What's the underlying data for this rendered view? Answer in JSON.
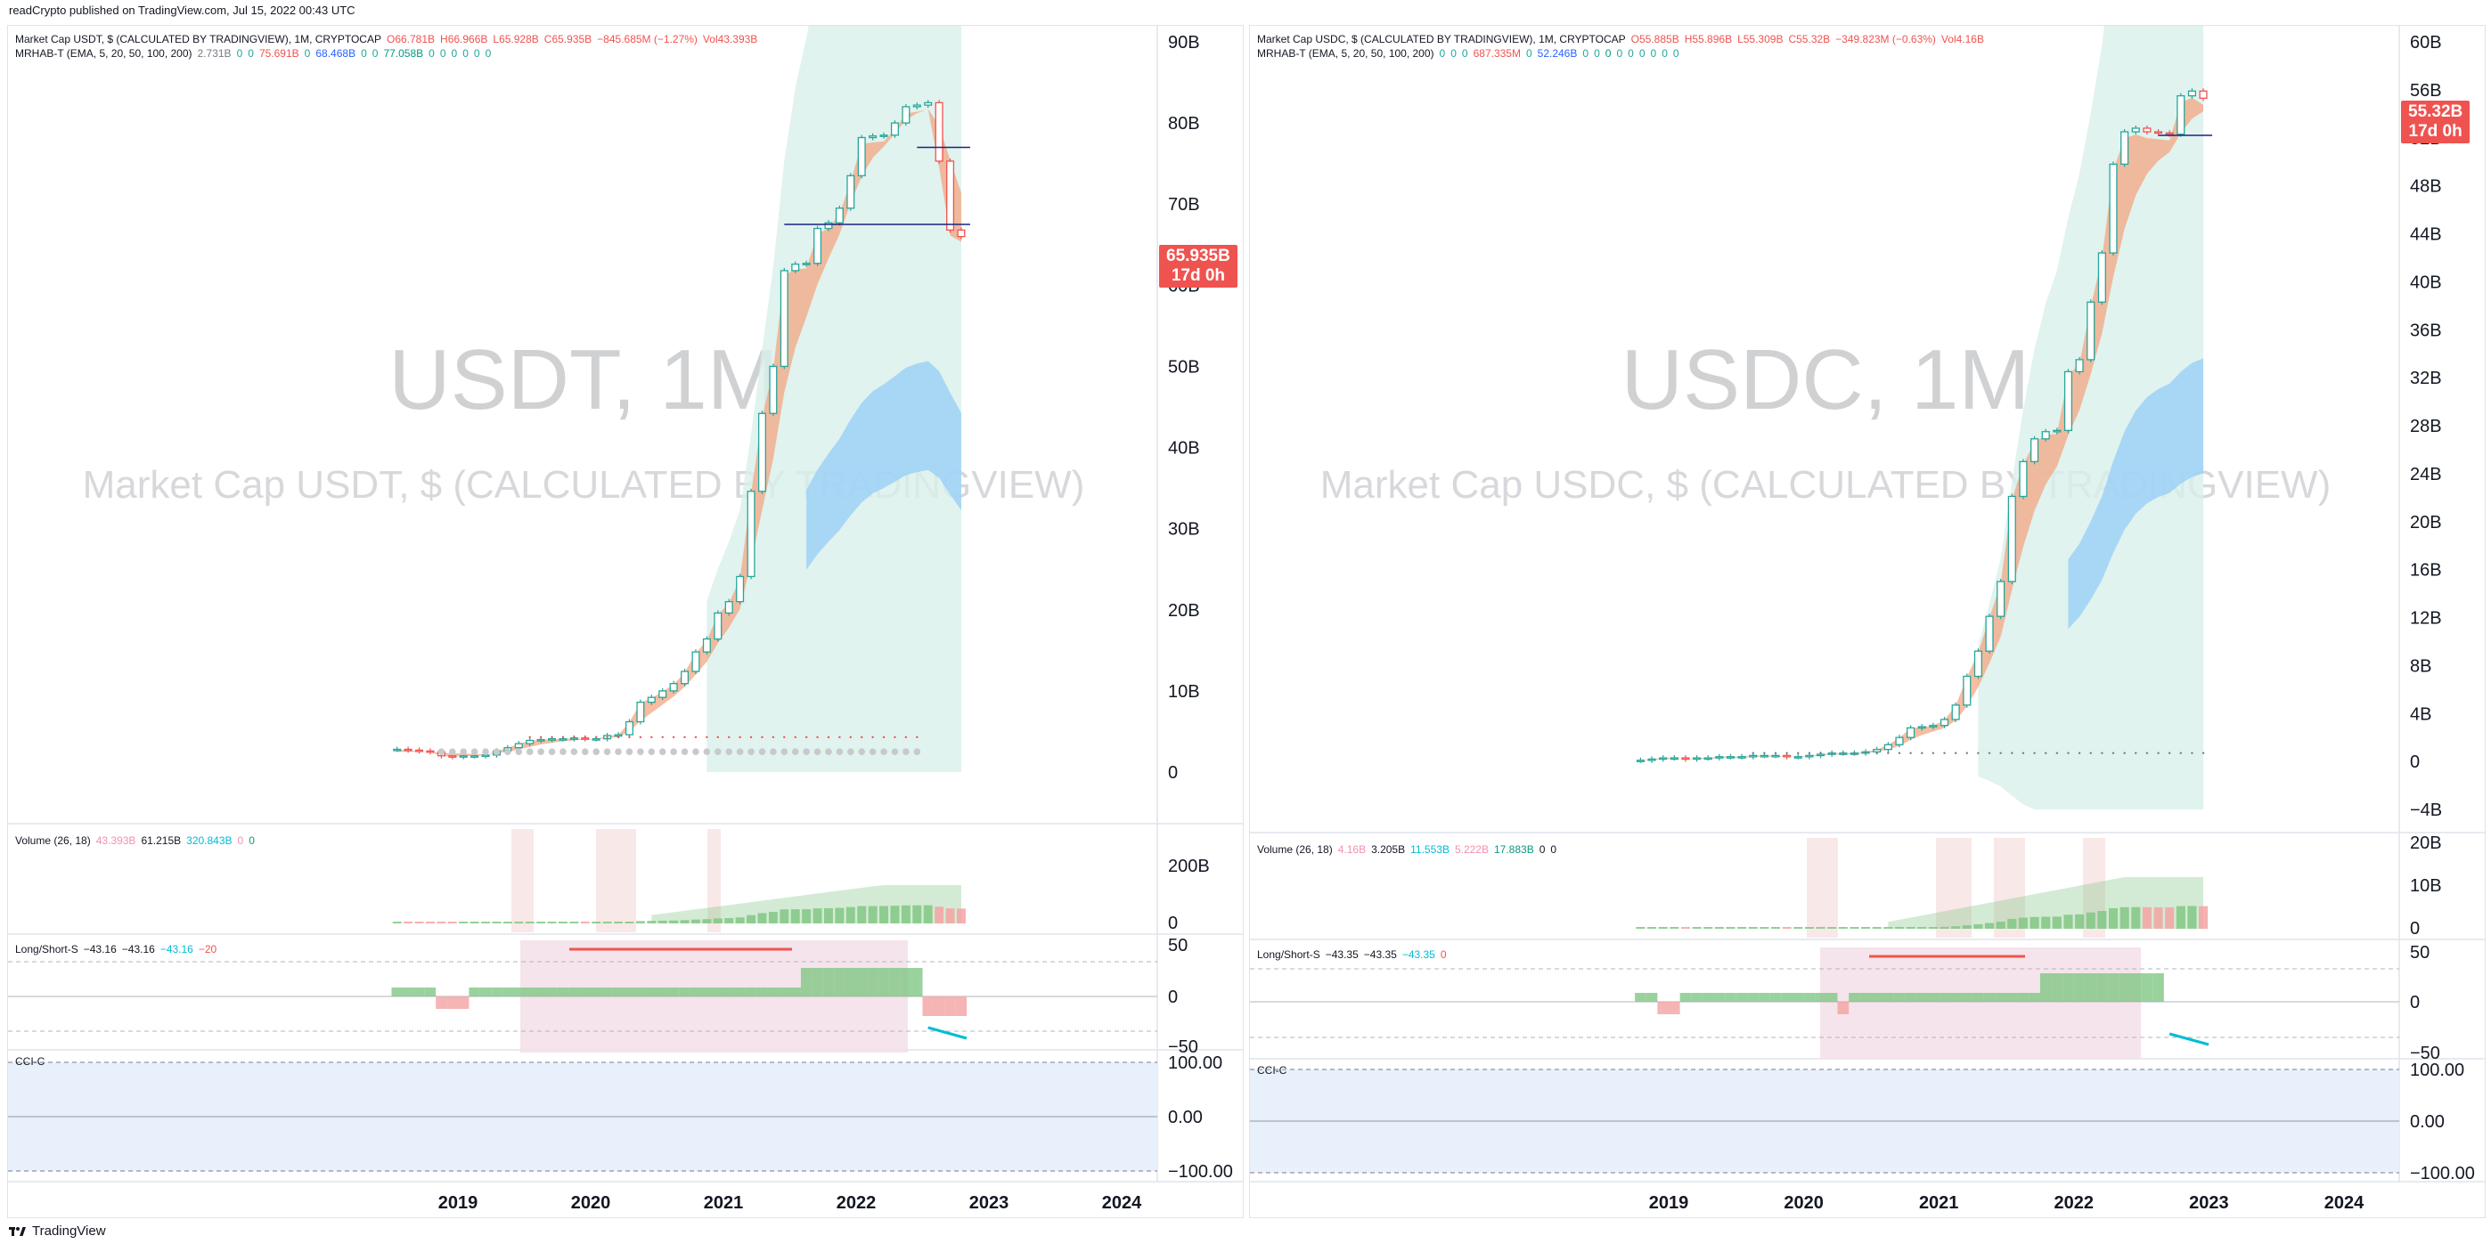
{
  "header": {
    "published": "readCrypto published on TradingView.com, Jul 15, 2022 00:43 UTC"
  },
  "footer": {
    "brand": "TradingView"
  },
  "colors": {
    "up": "#26a69a",
    "down": "#ef5350",
    "ema_band": "#f4a582",
    "cloud": "#d8f0ea",
    "blue_band": "#90caf9",
    "volume_up": "#81c784",
    "volume_down": "#f4a3a3",
    "cci_bg": "#e8f0fc",
    "ls_shade": "#f3dfe8"
  },
  "chart_data": [
    {
      "type": "candlestick",
      "symbol": "USDT, 1M",
      "title": "Market Cap USDT, $ (CALCULATED BY TRADINGVIEW)",
      "legend": {
        "main": [
          "Market Cap USDT, $ (CALCULATED BY TRADINGVIEW), 1M, CRYPTOCAP",
          "O66.781B",
          "H66.966B",
          "L65.928B",
          "C65.935B",
          "−845.685M (−1.27%)",
          "Vol43.393B"
        ],
        "ind": [
          "MRHAB-T (EMA, 5, 20, 50, 100, 200)",
          "2.731B",
          "0",
          "0",
          "75.691B",
          "0",
          "68.468B",
          "0",
          "0",
          "77.058B",
          "0",
          "0",
          "0",
          "0",
          "0",
          "0"
        ],
        "volume": [
          "Volume (26, 18)",
          "43.393B",
          "61.215B",
          "320.843B",
          "0",
          "0"
        ],
        "ls": [
          "Long/Short-S",
          "−43.16",
          "−43.16",
          "−43.16",
          "−20"
        ],
        "cci": [
          "CCI-C"
        ]
      },
      "price_axis": [
        "90B",
        "80B",
        "70B",
        "60B",
        "50B",
        "40B",
        "30B",
        "20B",
        "10B",
        "0"
      ],
      "ylim": [
        0,
        90
      ],
      "volume_axis": [
        "200B",
        "0"
      ],
      "ls_axis": [
        "50",
        "0",
        "−50"
      ],
      "cci_axis": [
        "100.00",
        "0.00",
        "−100.00"
      ],
      "time_axis": [
        "2019",
        "2020",
        "2021",
        "2022",
        "2023",
        "2024"
      ],
      "last_price": "65.935B",
      "countdown": "17d 0h",
      "x_start": "2018-07",
      "monthly_close_B": [
        2.8,
        2.7,
        2.6,
        2.5,
        2.0,
        1.9,
        2.0,
        2.0,
        2.1,
        2.6,
        3.0,
        3.5,
        3.9,
        4.0,
        4.1,
        4.1,
        4.2,
        4.1,
        4.1,
        4.5,
        4.6,
        6.2,
        8.6,
        9.2,
        10.0,
        10.9,
        12.4,
        14.8,
        16.4,
        19.6,
        21.0,
        24.1,
        34.6,
        44.2,
        50.0,
        61.8,
        62.6,
        62.7,
        67.0,
        67.7,
        69.5,
        73.5,
        78.2,
        78.4,
        78.5,
        80.0,
        82.0,
        82.2,
        82.5,
        75.3,
        66.8,
        66.0
      ],
      "ema_B": [
        2.5,
        2.5,
        2.5,
        2.5,
        2.4,
        2.3,
        2.3,
        2.2,
        2.2,
        2.3,
        2.5,
        2.8,
        3.1,
        3.4,
        3.6,
        3.8,
        3.9,
        4.0,
        4.0,
        4.2,
        4.3,
        5.0,
        6.3,
        7.3,
        8.3,
        9.3,
        10.5,
        12.0,
        13.6,
        15.9,
        17.8,
        20.1,
        25.8,
        32.3,
        38.6,
        46.8,
        52.3,
        56.1,
        60.1,
        63.3,
        66.3,
        70.1,
        73.4,
        75.7,
        77.1,
        78.7,
        80.4,
        81.2,
        81.7,
        79.7,
        75.4,
        71.4
      ]
    },
    {
      "type": "candlestick",
      "symbol": "USDC, 1M",
      "title": "Market Cap USDC, $ (CALCULATED BY TRADINGVIEW)",
      "legend": {
        "main": [
          "Market Cap USDC, $ (CALCULATED BY TRADINGVIEW), 1M, CRYPTOCAP",
          "O55.885B",
          "H55.896B",
          "L55.309B",
          "C55.32B",
          "−349.823M (−0.63%)",
          "Vol4.16B"
        ],
        "ind": [
          "MRHAB-T (EMA, 5, 20, 50, 100, 200)",
          "0",
          "0",
          "0",
          "687.335M",
          "0",
          "52.246B",
          "0",
          "0",
          "0",
          "0",
          "0",
          "0",
          "0",
          "0",
          "0"
        ],
        "volume": [
          "Volume (26, 18)",
          "4.16B",
          "3.205B",
          "11.553B",
          "5.222B",
          "17.883B",
          "0",
          "0"
        ],
        "ls": [
          "Long/Short-S",
          "−43.35",
          "−43.35",
          "−43.35",
          "0"
        ],
        "cci": [
          "CCI-C"
        ]
      },
      "price_axis": [
        "60B",
        "56B",
        "52B",
        "48B",
        "44B",
        "40B",
        "36B",
        "32B",
        "28B",
        "24B",
        "20B",
        "16B",
        "12B",
        "8B",
        "4B",
        "0",
        "−4B"
      ],
      "ylim": [
        -4,
        60
      ],
      "volume_axis": [
        "20B",
        "10B",
        "0"
      ],
      "ls_axis": [
        "50",
        "0",
        "−50"
      ],
      "cci_axis": [
        "100.00",
        "0.00",
        "−100.00"
      ],
      "time_axis": [
        "2019",
        "2020",
        "2021",
        "2022",
        "2023",
        "2024"
      ],
      "last_price": "55.32B",
      "countdown": "17d 0h",
      "x_start": "2018-10",
      "monthly_close_B": [
        0.1,
        0.2,
        0.3,
        0.3,
        0.2,
        0.3,
        0.3,
        0.4,
        0.4,
        0.4,
        0.5,
        0.5,
        0.5,
        0.4,
        0.4,
        0.5,
        0.6,
        0.7,
        0.7,
        0.7,
        0.8,
        1.0,
        1.4,
        2.0,
        2.8,
        2.9,
        3.0,
        3.5,
        4.7,
        7.1,
        9.2,
        12.1,
        15.0,
        22.1,
        25.0,
        26.9,
        27.5,
        27.6,
        32.5,
        33.5,
        38.3,
        42.4,
        49.8,
        52.5,
        52.8,
        52.5,
        52.4,
        52.3,
        55.5,
        55.9,
        55.3
      ],
      "ema_B": [
        0.1,
        0.1,
        0.2,
        0.2,
        0.2,
        0.2,
        0.2,
        0.3,
        0.3,
        0.3,
        0.4,
        0.4,
        0.4,
        0.4,
        0.4,
        0.4,
        0.5,
        0.6,
        0.6,
        0.6,
        0.7,
        0.8,
        1.0,
        1.3,
        1.8,
        2.2,
        2.5,
        2.8,
        3.4,
        4.6,
        6.2,
        8.2,
        10.4,
        14.3,
        17.9,
        20.9,
        23.1,
        24.6,
        27.2,
        29.3,
        32.3,
        35.7,
        40.4,
        44.4,
        47.2,
        49.0,
        50.1,
        50.8,
        52.4,
        53.6,
        54.2
      ]
    }
  ]
}
